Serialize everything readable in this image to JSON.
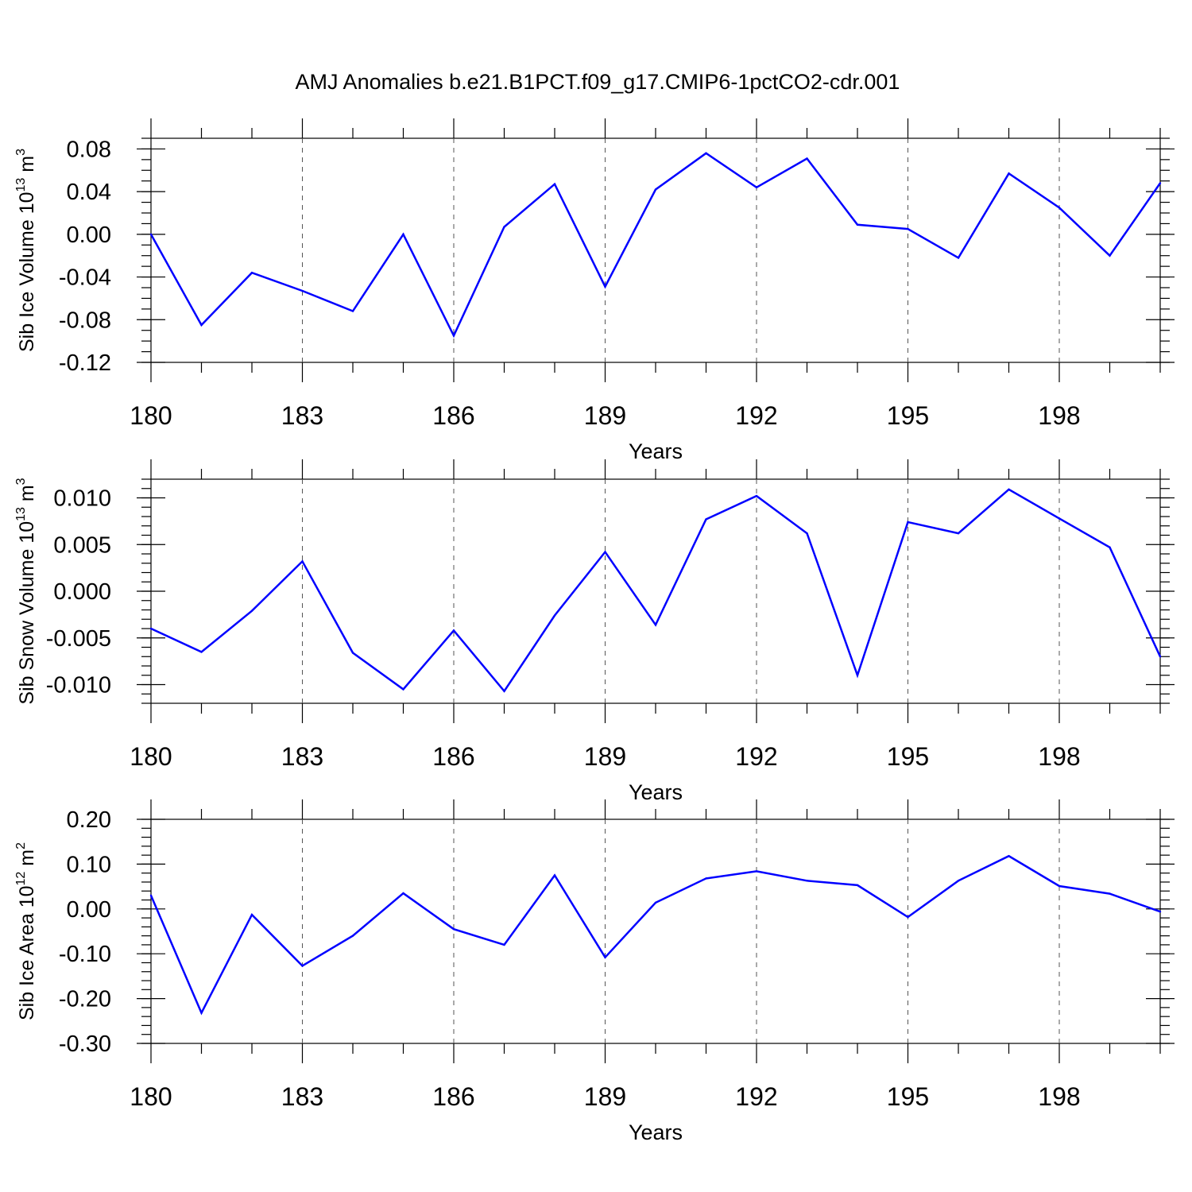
{
  "chart_data": [
    {
      "type": "line",
      "title": "AMJ Anomalies b.e21.B1PCT.f09_g17.CMIP6-1pctCO2-cdr.001",
      "ylabel": {
        "main": "Sib Ice Volume 10",
        "exp": "13",
        "unit": " m",
        "unit_exp": "3"
      },
      "xlabel": "Years",
      "xlim": [
        180,
        200
      ],
      "ylim": [
        -0.12,
        0.09
      ],
      "xticks": [
        180,
        183,
        186,
        189,
        192,
        195,
        198
      ],
      "xtick_labels": [
        "180",
        "183",
        "186",
        "189",
        "192",
        "195",
        "198"
      ],
      "yticks": [
        -0.12,
        -0.08,
        -0.04,
        0.0,
        0.04,
        0.08
      ],
      "ytick_labels": [
        "-0.12",
        "-0.08",
        "-0.04",
        "0.00",
        "0.04",
        "0.08"
      ],
      "y_minor_step": 0.01,
      "grid": "vertical dashed at major x ticks",
      "color": "#0000ff",
      "x": [
        180,
        181,
        182,
        183,
        184,
        185,
        186,
        187,
        188,
        189,
        190,
        191,
        192,
        193,
        194,
        195,
        196,
        197,
        198,
        199,
        200
      ],
      "values": [
        0.0,
        -0.085,
        -0.036,
        -0.053,
        -0.072,
        0.0,
        -0.095,
        0.007,
        0.047,
        -0.049,
        0.042,
        0.076,
        0.044,
        0.071,
        0.009,
        0.005,
        -0.022,
        0.057,
        0.025,
        -0.02,
        0.048
      ]
    },
    {
      "type": "line",
      "title": "",
      "ylabel": {
        "main": "Sib Snow Volume 10",
        "exp": "13",
        "unit": " m",
        "unit_exp": "3"
      },
      "xlabel": "Years",
      "xlim": [
        180,
        200
      ],
      "ylim": [
        -0.012,
        0.012
      ],
      "xticks": [
        180,
        183,
        186,
        189,
        192,
        195,
        198
      ],
      "xtick_labels": [
        "180",
        "183",
        "186",
        "189",
        "192",
        "195",
        "198"
      ],
      "yticks": [
        -0.01,
        -0.005,
        0.0,
        0.005,
        0.01
      ],
      "ytick_labels": [
        "-0.010",
        "-0.005",
        "0.000",
        "0.005",
        "0.010"
      ],
      "y_minor_step": 0.001,
      "grid": "vertical dashed at major x ticks",
      "color": "#0000ff",
      "x": [
        180,
        181,
        182,
        183,
        184,
        185,
        186,
        187,
        188,
        189,
        190,
        191,
        192,
        193,
        194,
        195,
        196,
        197,
        198,
        199,
        200
      ],
      "values": [
        -0.004,
        -0.0065,
        -0.0021,
        0.0032,
        -0.0066,
        -0.0105,
        -0.0042,
        -0.0107,
        -0.0026,
        0.0042,
        -0.0036,
        0.0077,
        0.0102,
        0.0062,
        -0.009,
        0.0074,
        0.0062,
        0.0109,
        0.0078,
        0.0047,
        -0.007
      ]
    },
    {
      "type": "line",
      "title": "",
      "ylabel": {
        "main": "Sib Ice Area 10",
        "exp": "12",
        "unit": " m",
        "unit_exp": "2"
      },
      "xlabel": "Years",
      "xlim": [
        180,
        200
      ],
      "ylim": [
        -0.3,
        0.2
      ],
      "xticks": [
        180,
        183,
        186,
        189,
        192,
        195,
        198
      ],
      "xtick_labels": [
        "180",
        "183",
        "186",
        "189",
        "192",
        "195",
        "198"
      ],
      "yticks": [
        -0.3,
        -0.2,
        -0.1,
        0.0,
        0.1,
        0.2
      ],
      "ytick_labels": [
        "-0.30",
        "-0.20",
        "-0.10",
        "0.00",
        "0.10",
        "0.20"
      ],
      "y_minor_step": 0.02,
      "grid": "vertical dashed at major x ticks",
      "color": "#0000ff",
      "x": [
        180,
        181,
        182,
        183,
        184,
        185,
        186,
        187,
        188,
        189,
        190,
        191,
        192,
        193,
        194,
        195,
        196,
        197,
        198,
        199,
        200
      ],
      "values": [
        0.03,
        -0.232,
        -0.013,
        -0.127,
        -0.06,
        0.035,
        -0.045,
        -0.08,
        0.075,
        -0.108,
        0.014,
        0.068,
        0.084,
        0.063,
        0.053,
        -0.018,
        0.063,
        0.118,
        0.051,
        0.034,
        -0.006
      ]
    }
  ]
}
